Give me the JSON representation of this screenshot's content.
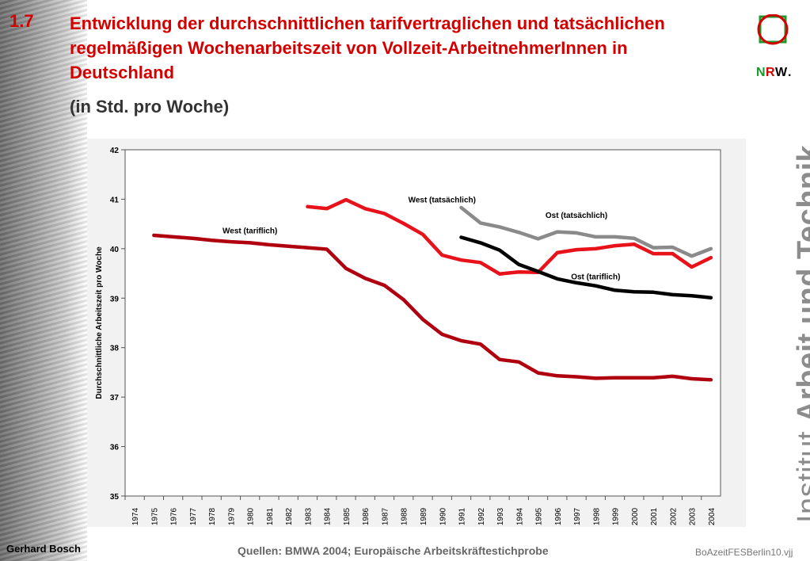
{
  "slide": {
    "number": "1.7",
    "title": "Entwicklung der durchschnittlichen tarifvertraglichen und tatsächlichen regelmäßigen Wochenarbeitszeit von Vollzeit-ArbeitnehmerInnen in Deutschland",
    "subtitle": "(in Std. pro Woche)"
  },
  "logo": {
    "n": "N",
    "r": "R",
    "w": "W",
    "dot": "."
  },
  "institute": {
    "part1": "Institut ",
    "part2": "Arbeit und Technik"
  },
  "footer": {
    "author": "Gerhard Bosch",
    "source": "Quellen: BMWA 2004; Europäische Arbeitskräftestichprobe",
    "file": "BoAzeitFESBerlin10.vjj"
  },
  "colors": {
    "title": "#d40000",
    "west_tariflich": "#b00010",
    "west_tatsaechlich": "#e8131a",
    "ost_tatsaechlich": "#8a8a8a",
    "ost_tariflich": "#000000",
    "logo_square": "#1a9a2a",
    "logo_circle": "#d40000"
  },
  "chart_data": {
    "type": "line",
    "title": "",
    "xlabel": "",
    "ylabel": "Durchschnittliche Arbeitszeit pro Woche",
    "ylim": [
      35,
      42
    ],
    "yticks": [
      "35",
      "36",
      "37",
      "38",
      "39",
      "40",
      "41",
      "42"
    ],
    "grid": false,
    "legend": "none",
    "categories": [
      "1974",
      "1975",
      "1976",
      "1977",
      "1978",
      "1979",
      "1980",
      "1981",
      "1982",
      "1983",
      "1984",
      "1985",
      "1986",
      "1987",
      "1988",
      "1989",
      "1990",
      "1991",
      "1992",
      "1993",
      "1994",
      "1995",
      "1996",
      "1997",
      "1998",
      "1999",
      "2000",
      "2001",
      "2002",
      "2003",
      "2004"
    ],
    "series": [
      {
        "name": "West (tariflich)",
        "color": "#b00010",
        "values": [
          null,
          40.27,
          40.24,
          40.21,
          40.17,
          40.14,
          40.12,
          40.08,
          40.05,
          40.02,
          39.99,
          39.6,
          39.4,
          39.26,
          38.97,
          38.57,
          38.27,
          38.14,
          38.07,
          37.76,
          37.71,
          37.49,
          37.43,
          37.41,
          37.38,
          37.39,
          37.39,
          37.39,
          37.42,
          37.37,
          37.35
        ]
      },
      {
        "name": "West (tatsächlich)",
        "color": "#e8131a",
        "values": [
          null,
          null,
          null,
          null,
          null,
          null,
          null,
          null,
          null,
          40.85,
          40.81,
          40.99,
          40.81,
          40.71,
          40.51,
          40.29,
          39.87,
          39.77,
          39.72,
          39.49,
          39.53,
          39.52,
          39.92,
          39.98,
          40.0,
          40.06,
          40.09,
          39.9,
          39.9,
          39.63,
          39.82
        ]
      },
      {
        "name": "Ost (tatsächlich)",
        "color": "#8a8a8a",
        "values": [
          null,
          null,
          null,
          null,
          null,
          null,
          null,
          null,
          null,
          null,
          null,
          null,
          null,
          null,
          null,
          null,
          null,
          40.83,
          40.52,
          40.44,
          40.33,
          40.2,
          40.34,
          40.32,
          40.24,
          40.24,
          40.21,
          40.02,
          40.03,
          39.85,
          40.0
        ]
      },
      {
        "name": "Ost (tariflich)",
        "color": "#000000",
        "values": [
          null,
          null,
          null,
          null,
          null,
          null,
          null,
          null,
          null,
          null,
          null,
          null,
          null,
          null,
          null,
          null,
          null,
          40.23,
          40.12,
          39.97,
          39.68,
          39.54,
          39.39,
          39.31,
          39.25,
          39.16,
          39.13,
          39.12,
          39.07,
          39.05,
          39.01
        ]
      }
    ],
    "annotations": [
      {
        "text": "West (tariflich)",
        "series": 0,
        "xcat": "1980",
        "y": 40.25
      },
      {
        "text": "West (tatsächlich)",
        "series": 1,
        "xcat": "1990",
        "y": 40.87
      },
      {
        "text": "Ost (tatsächlich)",
        "series": 2,
        "xcat": "1997",
        "y": 40.56
      },
      {
        "text": "Ost (tariflich)",
        "series": 3,
        "xcat": "1998",
        "y": 39.32
      }
    ]
  }
}
